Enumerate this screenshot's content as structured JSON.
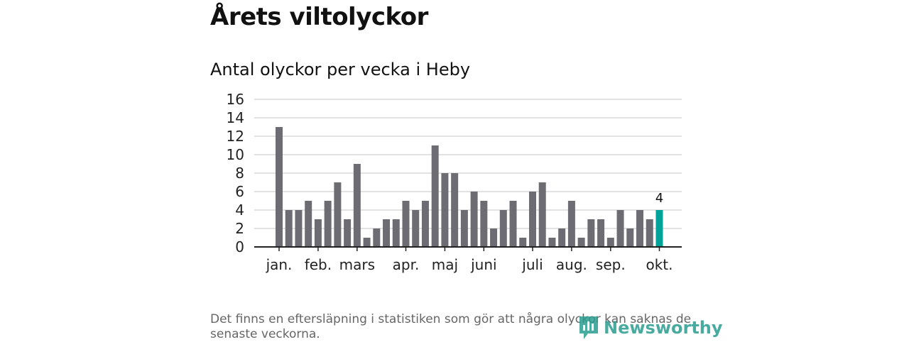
{
  "page": {
    "title": "Årets viltolyckor",
    "subtitle": "Antal olyckor per vecka i Heby",
    "footnote": "Det finns en eftersläpning i statistiken som gör att några olyckor kan saknas de senaste veckorna.",
    "logo_text": "Newsworthy",
    "logo_icon": "newsworthy-logo-icon"
  },
  "colors": {
    "bar": "#6d6c72",
    "highlight": "#00a39a",
    "grid": "#d9d9d9",
    "axis": "#222222"
  },
  "chart_data": {
    "type": "bar",
    "title": "Antal olyckor per vecka i Heby",
    "xlabel": "",
    "ylabel": "",
    "ylim": [
      0,
      16
    ],
    "yticks": [
      "0",
      "2",
      "4",
      "6",
      "8",
      "10",
      "12",
      "14",
      "16"
    ],
    "grid": true,
    "values": [
      13,
      4,
      4,
      5,
      3,
      5,
      7,
      3,
      9,
      1,
      2,
      3,
      3,
      5,
      4,
      5,
      11,
      8,
      8,
      4,
      6,
      5,
      2,
      4,
      5,
      1,
      6,
      7,
      1,
      2,
      5,
      1,
      3,
      3,
      1,
      4,
      2,
      4,
      3,
      4
    ],
    "highlight_index": 39,
    "highlight_label": "4",
    "month_ticks": [
      {
        "label": "jan.",
        "week_index": 0
      },
      {
        "label": "feb.",
        "week_index": 4
      },
      {
        "label": "mars",
        "week_index": 8
      },
      {
        "label": "apr.",
        "week_index": 13
      },
      {
        "label": "maj",
        "week_index": 17
      },
      {
        "label": "juni",
        "week_index": 21
      },
      {
        "label": "juli",
        "week_index": 26
      },
      {
        "label": "aug.",
        "week_index": 30
      },
      {
        "label": "sep.",
        "week_index": 34
      },
      {
        "label": "okt.",
        "week_index": 39
      }
    ]
  }
}
